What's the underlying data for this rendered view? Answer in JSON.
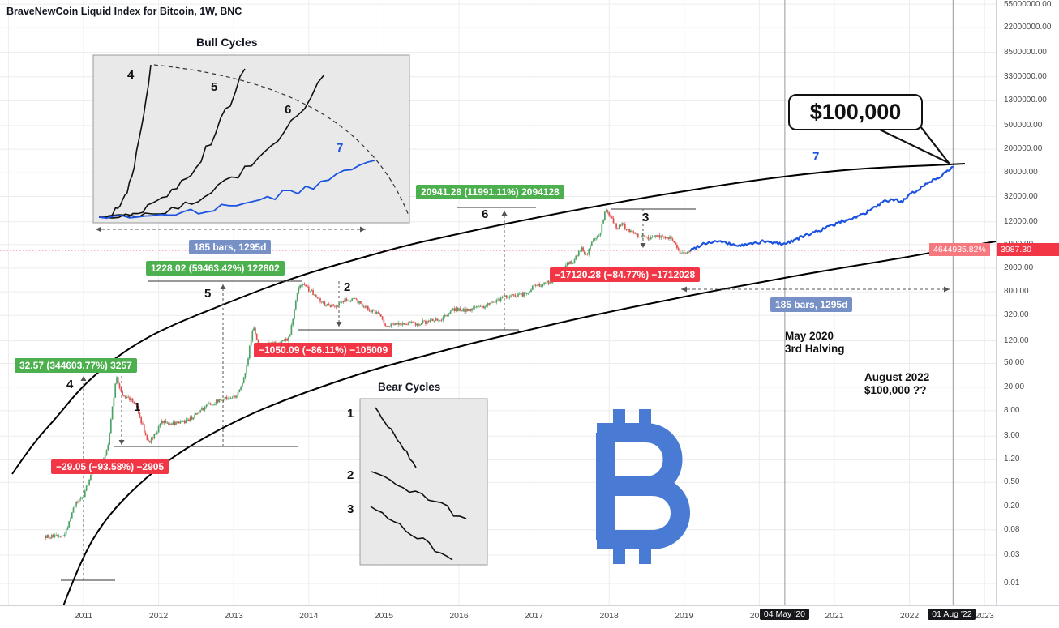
{
  "header": {
    "title": "BraveNewCoin Liquid Index for Bitcoin, 1W, BNC"
  },
  "colors": {
    "up_candle": "#4ca265",
    "down_candle": "#e15050",
    "projection_line": "#1b53e0",
    "gain_label_bg": "#4cb04f",
    "loss_label_bg": "#f23645",
    "span_label_bg": "#7791c7",
    "price_label_bg": "#f23645",
    "percent_label_bg": "#f77980",
    "bitcoin_logo": "#4a7bd4"
  },
  "insets": {
    "bull": {
      "title": "Bull Cycles",
      "cycle_labels": [
        "4",
        "5",
        "6",
        "7"
      ]
    },
    "bear": {
      "title": "Bear Cycles",
      "cycle_labels": [
        "1",
        "2",
        "3"
      ]
    }
  },
  "annotations": {
    "gains": [
      "32.57 (344603.77%) 3257",
      "1228.02 (59463.42%) 122802",
      "20941.28 (11991.11%) 2094128"
    ],
    "losses": [
      "−29.05 (−93.58%) −2905",
      "−1050.09 (−86.11%) −105009",
      "−17120.28 (−84.77%) −1712028"
    ],
    "spans": [
      "185 bars, 1295d",
      "185 bars, 1295d"
    ],
    "halving_line1": "May 2020",
    "halving_line2": "3rd Halving",
    "prediction_line1": "August 2022",
    "prediction_line2": "$100,000 ??",
    "callout": "$100,000",
    "cycle_markers": [
      "4",
      "1",
      "5",
      "2",
      "6",
      "3",
      "7"
    ]
  },
  "axes": {
    "price_ticks": [
      {
        "label": "55000000.00",
        "value": 55000000
      },
      {
        "label": "22000000.00",
        "value": 22000000
      },
      {
        "label": "8500000.00",
        "value": 8500000
      },
      {
        "label": "3300000.00",
        "value": 3300000
      },
      {
        "label": "1300000.00",
        "value": 1300000
      },
      {
        "label": "500000.00",
        "value": 500000
      },
      {
        "label": "200000.00",
        "value": 200000
      },
      {
        "label": "80000.00",
        "value": 80000
      },
      {
        "label": "32000.00",
        "value": 32000
      },
      {
        "label": "12000.00",
        "value": 12000
      },
      {
        "label": "5000.00",
        "value": 5000
      },
      {
        "label": "2000.00",
        "value": 2000
      },
      {
        "label": "800.00",
        "value": 800
      },
      {
        "label": "320.00",
        "value": 320
      },
      {
        "label": "120.00",
        "value": 120
      },
      {
        "label": "50.00",
        "value": 50
      },
      {
        "label": "20.00",
        "value": 20
      },
      {
        "label": "8.00",
        "value": 8
      },
      {
        "label": "3.00",
        "value": 3
      },
      {
        "label": "1.20",
        "value": 1.2
      },
      {
        "label": "0.50",
        "value": 0.5
      },
      {
        "label": "0.20",
        "value": 0.2
      },
      {
        "label": "0.08",
        "value": 0.08
      },
      {
        "label": "0.03",
        "value": 0.03
      },
      {
        "label": "0.01",
        "value": 0.01
      }
    ],
    "year_ticks": [
      "2011",
      "2012",
      "2013",
      "2014",
      "2015",
      "2016",
      "2017",
      "2018",
      "2019",
      "2020",
      "2021",
      "2022",
      "2023"
    ],
    "events": [
      {
        "label": "04 May '20",
        "t": 2020.34
      },
      {
        "label": "01 Aug '22",
        "t": 2022.58
      }
    ],
    "current_price": "3987.30",
    "percent_change": "4644935.82%"
  },
  "chart_data": {
    "type": "line",
    "title": "BraveNewCoin Liquid Index for Bitcoin, 1W, BNC",
    "timeframe": "1W",
    "y_scale": "log",
    "x_range": [
      "2010-07",
      "2023-01"
    ],
    "key_levels": {
      "current_price": 3987.3,
      "current_percent_change": "4644935.82%",
      "projection_target_price": 100000,
      "projection_target_date": "01 Aug '22",
      "halving_date": "04 May '20",
      "halving_label": "3rd Halving"
    },
    "cycle_moves": [
      {
        "type": "gain",
        "amount": 32.57,
        "percent": 344603.77,
        "extra": 3257
      },
      {
        "type": "loss",
        "amount": -29.05,
        "percent": -93.58,
        "extra": -2905
      },
      {
        "type": "gain",
        "amount": 1228.02,
        "percent": 59463.42,
        "extra": 122802
      },
      {
        "type": "loss",
        "amount": -1050.09,
        "percent": -86.11,
        "extra": -105009
      },
      {
        "type": "gain",
        "amount": 20941.28,
        "percent": 11991.11,
        "extra": 2094128
      },
      {
        "type": "loss",
        "amount": -17120.28,
        "percent": -84.77,
        "extra": -1712028
      }
    ],
    "span_measure": {
      "bars": 185,
      "days": 1295
    },
    "history_anchors": [
      [
        2010.5,
        0.062
      ],
      [
        2010.62,
        0.06
      ],
      [
        2010.75,
        0.065
      ],
      [
        2010.88,
        0.2
      ],
      [
        2011.0,
        0.3
      ],
      [
        2011.12,
        0.78
      ],
      [
        2011.22,
        0.92
      ],
      [
        2011.32,
        1.8
      ],
      [
        2011.38,
        8.0
      ],
      [
        2011.44,
        31.0
      ],
      [
        2011.5,
        16.5
      ],
      [
        2011.58,
        13.5
      ],
      [
        2011.68,
        11.0
      ],
      [
        2011.78,
        4.8
      ],
      [
        2011.86,
        2.3
      ],
      [
        2011.95,
        3.1
      ],
      [
        2012.05,
        5.3
      ],
      [
        2012.18,
        4.9
      ],
      [
        2012.32,
        5.1
      ],
      [
        2012.48,
        6.6
      ],
      [
        2012.63,
        9.5
      ],
      [
        2012.78,
        11.5
      ],
      [
        2012.92,
        13.2
      ],
      [
        2013.05,
        14.5
      ],
      [
        2013.15,
        30
      ],
      [
        2013.26,
        220
      ],
      [
        2013.33,
        90
      ],
      [
        2013.45,
        105
      ],
      [
        2013.6,
        110
      ],
      [
        2013.74,
        135
      ],
      [
        2013.86,
        900
      ],
      [
        2013.92,
        1150
      ],
      [
        2014.0,
        880
      ],
      [
        2014.1,
        700
      ],
      [
        2014.22,
        480
      ],
      [
        2014.35,
        460
      ],
      [
        2014.48,
        590
      ],
      [
        2014.6,
        610
      ],
      [
        2014.72,
        480
      ],
      [
        2014.85,
        370
      ],
      [
        2014.95,
        320
      ],
      [
        2015.04,
        210
      ],
      [
        2015.15,
        245
      ],
      [
        2015.3,
        237
      ],
      [
        2015.45,
        232
      ],
      [
        2015.6,
        255
      ],
      [
        2015.72,
        270
      ],
      [
        2015.85,
        320
      ],
      [
        2015.95,
        420
      ],
      [
        2016.08,
        395
      ],
      [
        2016.2,
        420
      ],
      [
        2016.35,
        450
      ],
      [
        2016.5,
        570
      ],
      [
        2016.62,
        660
      ],
      [
        2016.75,
        680
      ],
      [
        2016.88,
        740
      ],
      [
        2017.0,
        980
      ],
      [
        2017.1,
        1050
      ],
      [
        2017.2,
        1180
      ],
      [
        2017.32,
        1300
      ],
      [
        2017.42,
        2300
      ],
      [
        2017.52,
        2600
      ],
      [
        2017.62,
        4300
      ],
      [
        2017.7,
        3400
      ],
      [
        2017.8,
        6200
      ],
      [
        2017.88,
        8000
      ],
      [
        2017.95,
        19000
      ],
      [
        2018.02,
        15000
      ],
      [
        2018.1,
        9000
      ],
      [
        2018.18,
        10800
      ],
      [
        2018.27,
        8300
      ],
      [
        2018.38,
        7200
      ],
      [
        2018.5,
        6400
      ],
      [
        2018.6,
        6700
      ],
      [
        2018.72,
        6500
      ],
      [
        2018.82,
        6400
      ],
      [
        2018.9,
        4300
      ],
      [
        2018.97,
        3400
      ],
      [
        2019.04,
        3700
      ],
      [
        2019.08,
        3950
      ]
    ],
    "projection_anchors": [
      [
        2019.08,
        3950
      ],
      [
        2019.25,
        5200
      ],
      [
        2019.45,
        5700
      ],
      [
        2019.6,
        5100
      ],
      [
        2019.75,
        4750
      ],
      [
        2019.9,
        5150
      ],
      [
        2020.05,
        5600
      ],
      [
        2020.2,
        5300
      ],
      [
        2020.34,
        5150
      ],
      [
        2020.5,
        6200
      ],
      [
        2020.65,
        7400
      ],
      [
        2020.8,
        8600
      ],
      [
        2020.95,
        10200
      ],
      [
        2021.1,
        12200
      ],
      [
        2021.25,
        14000
      ],
      [
        2021.4,
        16500
      ],
      [
        2021.55,
        21500
      ],
      [
        2021.68,
        26500
      ],
      [
        2021.8,
        28500
      ],
      [
        2021.9,
        26000
      ],
      [
        2022.0,
        33500
      ],
      [
        2022.1,
        41000
      ],
      [
        2022.22,
        52000
      ],
      [
        2022.34,
        63000
      ],
      [
        2022.45,
        76000
      ],
      [
        2022.52,
        87000
      ],
      [
        2022.58,
        100000
      ]
    ]
  }
}
